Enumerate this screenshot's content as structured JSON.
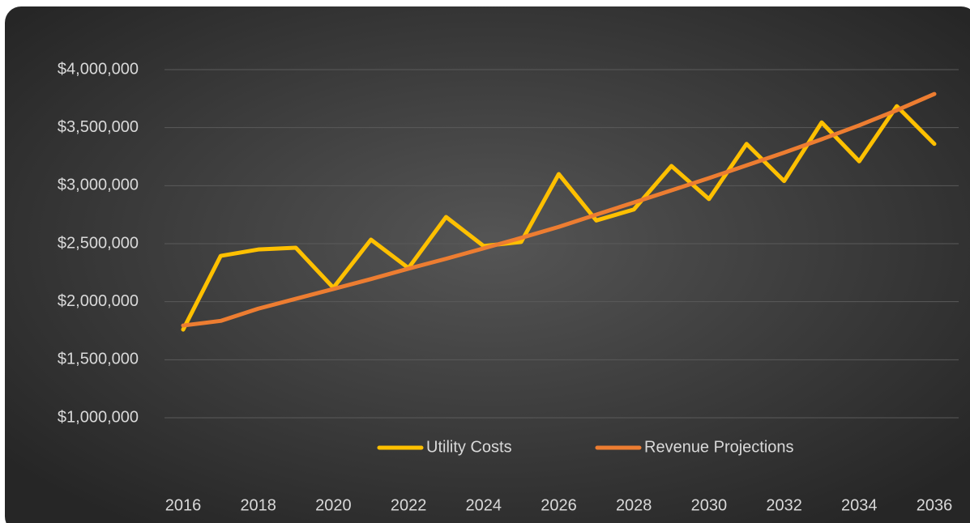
{
  "chart_data": {
    "type": "line",
    "x": [
      2016,
      2017,
      2018,
      2019,
      2020,
      2021,
      2022,
      2023,
      2024,
      2025,
      2026,
      2027,
      2028,
      2029,
      2030,
      2031,
      2032,
      2033,
      2034,
      2035,
      2036
    ],
    "series": [
      {
        "name": "Utility Costs",
        "color": "#ffc000",
        "values": [
          1760000,
          2395000,
          2450000,
          2465000,
          2120000,
          2535000,
          2290000,
          2730000,
          2480000,
          2515000,
          3100000,
          2700000,
          2795000,
          3170000,
          2885000,
          3360000,
          3040000,
          3545000,
          3210000,
          3685000,
          3360000
        ]
      },
      {
        "name": "Revenue Projections",
        "color": "#ed7d31",
        "values": [
          1795000,
          1835000,
          1940000,
          2025000,
          2110000,
          2195000,
          2285000,
          2370000,
          2460000,
          2550000,
          2645000,
          2750000,
          2855000,
          2960000,
          3065000,
          3175000,
          3285000,
          3400000,
          3520000,
          3650000,
          3790000
        ]
      }
    ],
    "xlim": [
      2016,
      2036
    ],
    "xticks": [
      2016,
      2018,
      2020,
      2022,
      2024,
      2026,
      2028,
      2030,
      2032,
      2034,
      2036
    ],
    "ylim": [
      1000000,
      4000000
    ],
    "yticks": [
      {
        "value": 1000000,
        "label": "$1,000,000"
      },
      {
        "value": 1500000,
        "label": "$1,500,000"
      },
      {
        "value": 2000000,
        "label": "$2,000,000"
      },
      {
        "value": 2500000,
        "label": "$2,500,000"
      },
      {
        "value": 3000000,
        "label": "$3,000,000"
      },
      {
        "value": 3500000,
        "label": "$3,500,000"
      },
      {
        "value": 4000000,
        "label": "$4,000,000"
      }
    ],
    "grid": true,
    "legend": "bottom"
  }
}
